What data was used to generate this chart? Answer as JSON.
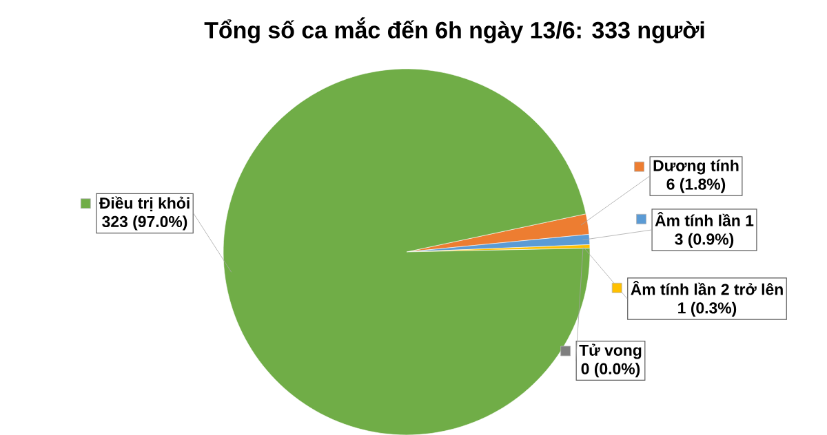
{
  "chart_data": {
    "type": "pie",
    "title": "Tổng số ca mắc đến 6h ngày 13/6: 333 người",
    "categories": [
      "Dương tính",
      "Âm tính lần 1",
      "Âm tính lần 2 trở lên",
      "Tử vong",
      "Điều trị khỏi"
    ],
    "values": [
      6,
      3,
      1,
      0,
      323
    ],
    "colors": [
      "#ed7d31",
      "#5b9bd5",
      "#ffc000",
      "#7f7f7f",
      "#70ad47"
    ],
    "value_labels": [
      "6 (1.8%)",
      "3 (0.9%)",
      "1 (0.3%)",
      "0 (0.0%)",
      "323 (97.0%)"
    ],
    "legend": "right"
  }
}
